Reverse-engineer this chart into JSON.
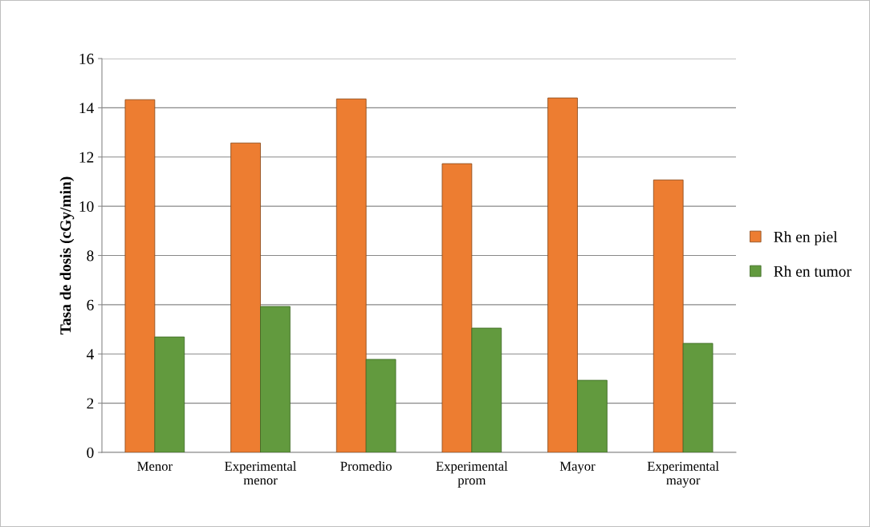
{
  "chart_data": {
    "type": "bar",
    "ylabel": "Tasa de dosis (cGy/min)",
    "categories": [
      "Menor",
      "Experimental\nmenor",
      "Promedio",
      "Experimental\nprom",
      "Mayor",
      "Experimental\nmayor"
    ],
    "series": [
      {
        "name": "Rh en piel",
        "color": "#ed7d31",
        "values": [
          14.33,
          12.57,
          14.36,
          11.73,
          14.4,
          11.07
        ]
      },
      {
        "name": "Rh en tumor",
        "color": "#629a3e",
        "values": [
          4.69,
          5.93,
          3.78,
          5.05,
          2.93,
          4.43
        ]
      }
    ],
    "ylim": [
      0,
      16
    ],
    "yticks": [
      0,
      2,
      4,
      6,
      8,
      10,
      12,
      14,
      16
    ],
    "grid": "y",
    "legend": "right"
  }
}
